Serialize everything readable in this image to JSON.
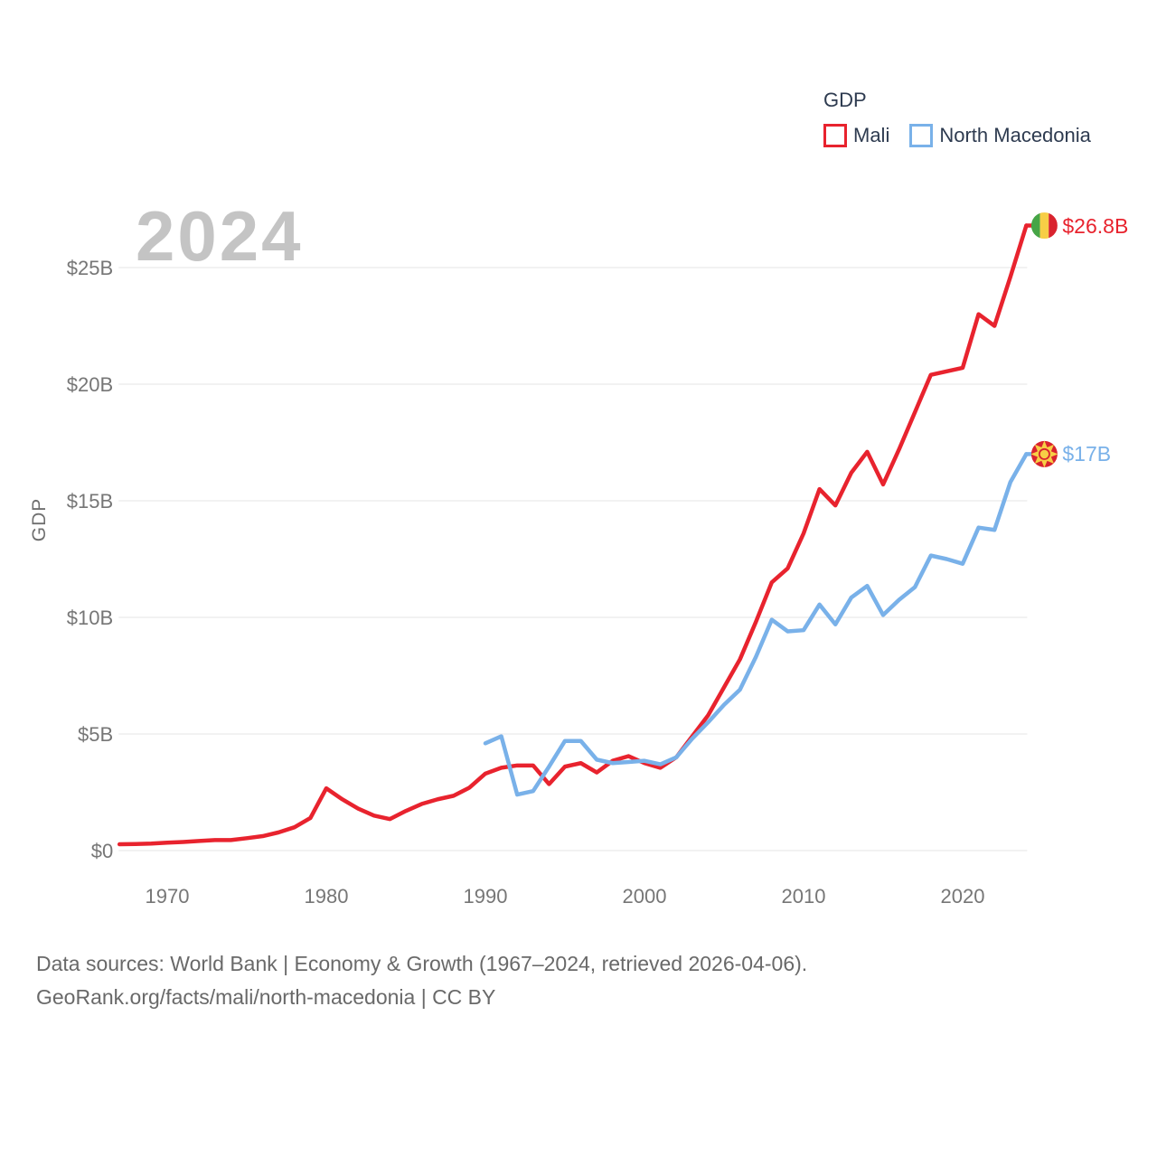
{
  "watermark": "2024",
  "legend": {
    "title": "GDP",
    "items": [
      {
        "label": "Mali",
        "color": "#e8232e"
      },
      {
        "label": "North Macedonia",
        "color": "#79b1e9"
      }
    ]
  },
  "end_labels": {
    "mali": "$26.8B",
    "north_macedonia": "$17B"
  },
  "footer": {
    "line1": "Data sources: World Bank | Economy & Growth (1967–2024, retrieved 2026-04-06).",
    "line2": "GeoRank.org/facts/mali/north-macedonia | CC BY"
  },
  "chart_data": {
    "type": "line",
    "title": "GDP",
    "xlabel": "",
    "ylabel": "GDP",
    "xlim": [
      1967,
      2024
    ],
    "ylim": [
      0,
      27.5
    ],
    "grid": true,
    "legend_position": "top-right",
    "x_ticks": [
      1970,
      1980,
      1990,
      2000,
      2010,
      2020
    ],
    "y_ticks": [
      {
        "value": 0,
        "label": "$0"
      },
      {
        "value": 5,
        "label": "$5B"
      },
      {
        "value": 10,
        "label": "$10B"
      },
      {
        "value": 15,
        "label": "$15B"
      },
      {
        "value": 20,
        "label": "$20B"
      },
      {
        "value": 25,
        "label": "$25B"
      }
    ],
    "series": [
      {
        "name": "Mali",
        "color": "#e8232e",
        "flag": "mali-flag",
        "end_label": "$26.8B",
        "start_year": 1967,
        "values": [
          0.27,
          0.28,
          0.3,
          0.34,
          0.37,
          0.41,
          0.45,
          0.45,
          0.53,
          0.62,
          0.78,
          1.0,
          1.4,
          2.67,
          2.2,
          1.8,
          1.5,
          1.35,
          1.7,
          2.0,
          2.2,
          2.35,
          2.7,
          3.3,
          3.55,
          3.65,
          3.65,
          2.85,
          3.6,
          3.75,
          3.35,
          3.85,
          4.05,
          3.75,
          3.55,
          4.0,
          4.9,
          5.8,
          7.0,
          8.2,
          9.8,
          11.5,
          12.1,
          13.6,
          15.5,
          14.8,
          16.2,
          17.1,
          15.7,
          17.2,
          18.8,
          20.4,
          20.55,
          20.7,
          23.0,
          22.5,
          24.6,
          26.8
        ]
      },
      {
        "name": "North Macedonia",
        "color": "#79b1e9",
        "flag": "nm-flag",
        "end_label": "$17B",
        "start_year": 1990,
        "values": [
          4.6,
          4.9,
          2.4,
          2.55,
          3.6,
          4.7,
          4.7,
          3.9,
          3.75,
          3.8,
          3.85,
          3.7,
          4.0,
          4.8,
          5.5,
          6.25,
          6.9,
          8.3,
          9.9,
          9.4,
          9.45,
          10.55,
          9.7,
          10.85,
          11.35,
          10.1,
          10.75,
          11.3,
          12.65,
          12.5,
          12.3,
          13.85,
          13.75,
          15.8,
          17.0
        ]
      }
    ]
  }
}
